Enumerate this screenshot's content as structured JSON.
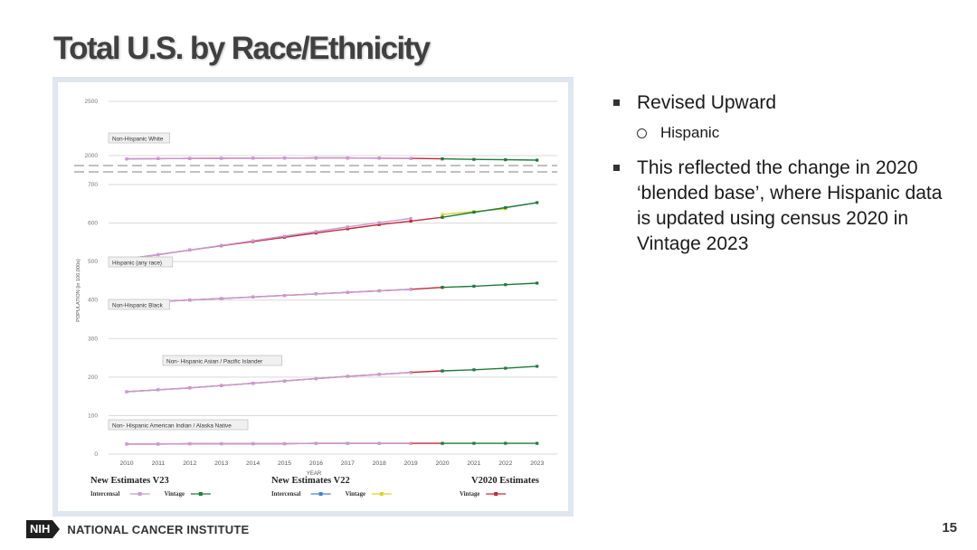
{
  "slide": {
    "title": "Total U.S. by Race/Ethnicity",
    "page_number": "15"
  },
  "footer": {
    "logo_text": "NIH",
    "org_name": "NATIONAL CANCER INSTITUTE"
  },
  "bullets": [
    {
      "text": "Revised Upward",
      "sub": [
        "Hispanic"
      ]
    },
    {
      "text": "This reflected the change in 2020 ‘blended base’, where Hispanic data is updated using census 2020 in Vintage 2023",
      "sub": []
    }
  ],
  "colors": {
    "intercensal_v23": "#c79bd0",
    "vintage_v23": "#1e7a3c",
    "intercensal_v22": "#4a7fd4",
    "vintage_v22": "#d9d42b",
    "vintage_v2020": "#c0283a",
    "axis_text": "#777777",
    "grid": "#d9d9d9"
  },
  "chart_data": {
    "type": "line",
    "ylabel": "POPULATION (in 100,000s)",
    "xlabel": "YEAR",
    "x": [
      2010,
      2011,
      2012,
      2013,
      2014,
      2015,
      2016,
      2017,
      2018,
      2019,
      2020,
      2021,
      2022,
      2023
    ],
    "ylim": [
      0,
      700
    ],
    "y_ticks": [
      "0",
      "100",
      "200",
      "300",
      "400",
      "500",
      "600",
      "700"
    ],
    "upper_panel": {
      "y_ticks": [
        "2000",
        "2500"
      ],
      "ylim": [
        1900,
        2500
      ]
    },
    "groups": [
      {
        "name": "Non-Hispanic White",
        "intercensal": [
          1970,
          1972,
          1974,
          1975,
          1976,
          1977,
          1978,
          1978,
          1976,
          1974
        ],
        "vintage": [
          1970,
          1972,
          1974,
          1975,
          1976,
          1977,
          1978,
          1978,
          1976,
          1974,
          1970,
          1965,
          1962,
          1958
        ]
      },
      {
        "name": "Hispanic (any race)",
        "intercensal": [
          507,
          518,
          530,
          542,
          554,
          566,
          578,
          590,
          601,
          612
        ],
        "vintage": [
          507,
          518,
          530,
          541,
          552,
          563,
          574,
          585,
          596,
          605,
          615,
          628,
          640,
          653
        ],
        "v22_vintage": [
          622,
          630,
          637
        ]
      },
      {
        "name": "Non-Hispanic Black",
        "intercensal": [
          392,
          396,
          400,
          404,
          408,
          412,
          416,
          420,
          424,
          428
        ],
        "vintage": [
          392,
          396,
          400,
          404,
          408,
          412,
          416,
          420,
          424,
          428,
          433,
          436,
          440,
          444
        ]
      },
      {
        "name": "Non- Hispanic Asian / Pacific Islander",
        "intercensal": [
          162,
          167,
          172,
          178,
          184,
          190,
          196,
          202,
          207,
          212
        ],
        "vintage": [
          162,
          167,
          172,
          178,
          184,
          190,
          196,
          202,
          207,
          212,
          216,
          219,
          223,
          228
        ]
      },
      {
        "name": "Non- Hispanic American Indian / Alaska Native",
        "intercensal": [
          26,
          26,
          27,
          27,
          27,
          27,
          28,
          28,
          28,
          28
        ],
        "vintage": [
          26,
          26,
          27,
          27,
          27,
          27,
          28,
          28,
          28,
          28,
          28,
          28,
          28,
          28
        ]
      }
    ],
    "legends": [
      {
        "title": "New Estimates V23",
        "items": [
          {
            "label": "Intercensal",
            "color_key": "intercensal_v23"
          },
          {
            "label": "Vintage",
            "color_key": "vintage_v23"
          }
        ]
      },
      {
        "title": "New Estimates V22",
        "items": [
          {
            "label": "Intercensal",
            "color_key": "intercensal_v22"
          },
          {
            "label": "Vintage",
            "color_key": "vintage_v22"
          }
        ]
      },
      {
        "title": "V2020 Estimates",
        "items": [
          {
            "label": "Vintage",
            "color_key": "vintage_v2020"
          }
        ]
      }
    ]
  }
}
